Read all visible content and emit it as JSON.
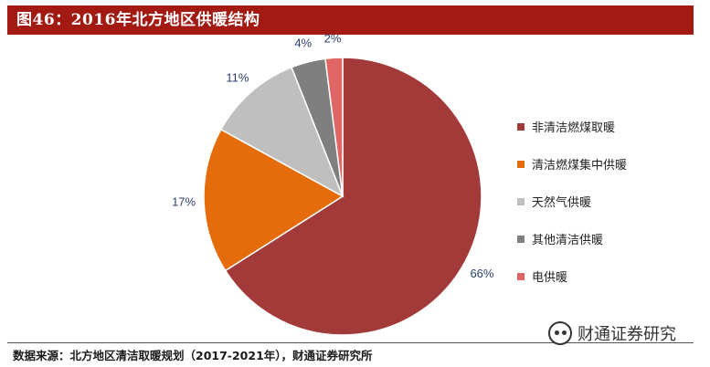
{
  "header": {
    "title": "图46：2016年北方地区供暖结构"
  },
  "chart_data": {
    "type": "pie",
    "title": "图46：2016年北方地区供暖结构",
    "start_angle_deg": 0,
    "direction": "clockwise",
    "legend_position": "right",
    "slices": [
      {
        "name": "非清洁燃煤取暖",
        "value": 66,
        "label": "66%",
        "color": "#a33a3a"
      },
      {
        "name": "清洁燃煤集中供暖",
        "value": 17,
        "label": "17%",
        "color": "#e46c0a"
      },
      {
        "name": "天然气供暖",
        "value": 11,
        "label": "11%",
        "color": "#bfbfbf"
      },
      {
        "name": "其他清洁供暖",
        "value": 4,
        "label": "4%",
        "color": "#7f7f7f"
      },
      {
        "name": "电供暖",
        "value": 2,
        "label": "2%",
        "color": "#e06666"
      }
    ]
  },
  "footer": {
    "source": "数据来源：北方地区清洁取暖规划（2017-2021年），财通证券研究所"
  },
  "watermark": {
    "text": "财通证券研究"
  }
}
